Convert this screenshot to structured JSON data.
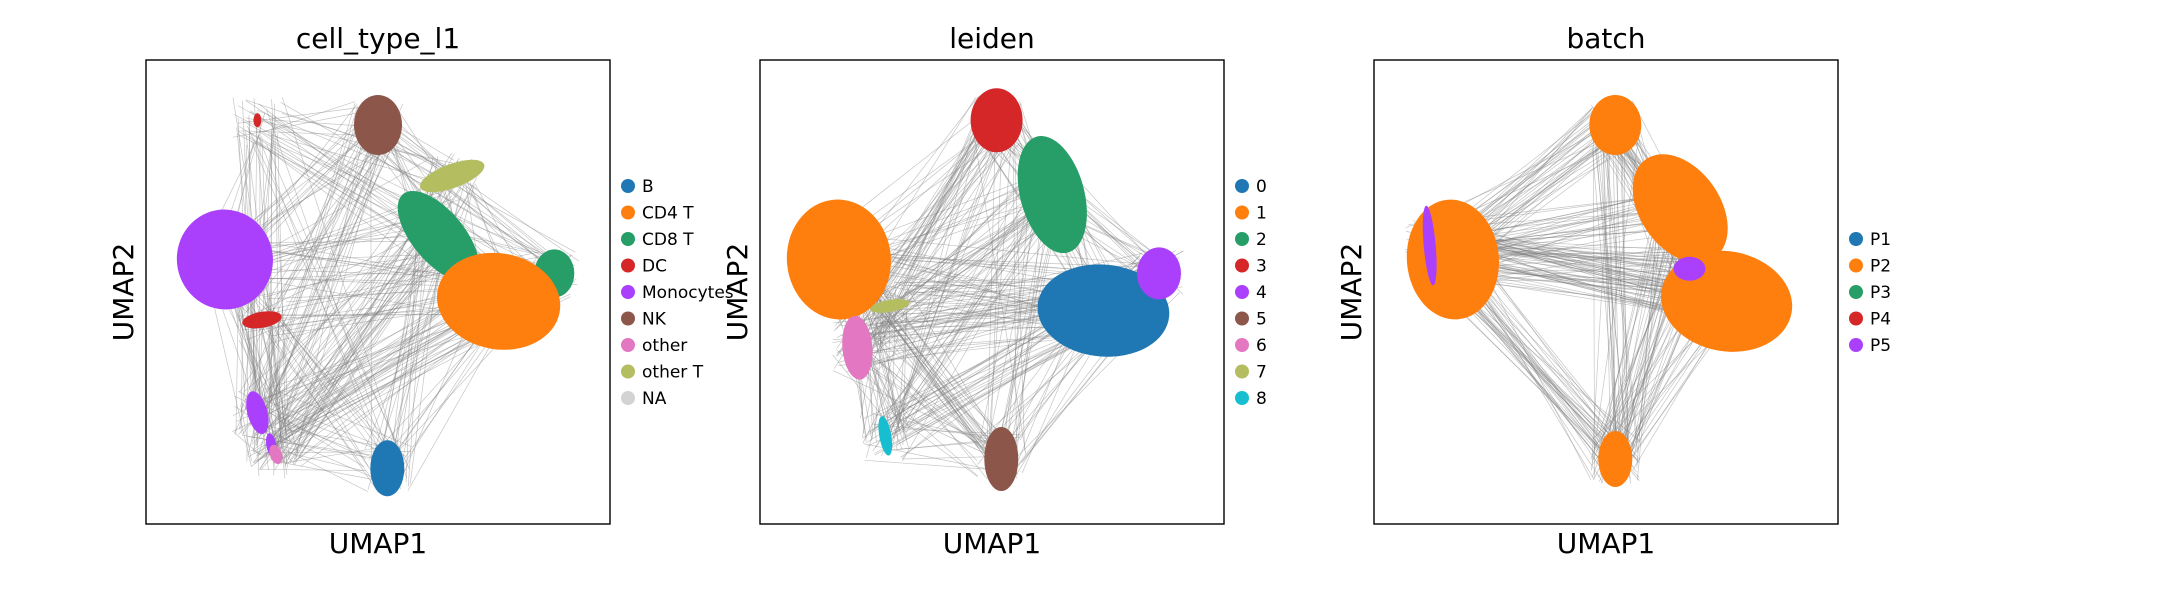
{
  "chart_data": [
    {
      "type": "scatter",
      "title": "cell_type_l1",
      "xlabel": "UMAP1",
      "ylabel": "UMAP2",
      "grid": false,
      "legend_placement": "right",
      "legend": [
        {
          "label": "B",
          "color": "#1f77b4"
        },
        {
          "label": "CD4 T",
          "color": "#ff7f0e"
        },
        {
          "label": "CD8 T",
          "color": "#279e68"
        },
        {
          "label": "DC",
          "color": "#d62728"
        },
        {
          "label": "Monocytes",
          "color": "#aa40fc"
        },
        {
          "label": "NK",
          "color": "#8c564b"
        },
        {
          "label": "other",
          "color": "#e377c2"
        },
        {
          "label": "other T",
          "color": "#b5bd61"
        },
        {
          "label": "NA",
          "color": "#d3d3d3"
        }
      ],
      "clusters": [
        {
          "category": "Monocytes",
          "x": 0.17,
          "y": 0.57
        },
        {
          "category": "Monocytes",
          "x": 0.24,
          "y": 0.24
        },
        {
          "category": "Monocytes",
          "x": 0.27,
          "y": 0.17
        },
        {
          "category": "other",
          "x": 0.28,
          "y": 0.15
        },
        {
          "category": "DC",
          "x": 0.25,
          "y": 0.44
        },
        {
          "category": "DC",
          "x": 0.24,
          "y": 0.87
        },
        {
          "category": "NK",
          "x": 0.5,
          "y": 0.86
        },
        {
          "category": "other T",
          "x": 0.66,
          "y": 0.75
        },
        {
          "category": "CD8 T",
          "x": 0.63,
          "y": 0.62
        },
        {
          "category": "CD8 T",
          "x": 0.88,
          "y": 0.54
        },
        {
          "category": "CD4 T",
          "x": 0.76,
          "y": 0.48
        },
        {
          "category": "B",
          "x": 0.52,
          "y": 0.12
        }
      ]
    },
    {
      "type": "scatter",
      "title": "leiden",
      "xlabel": "UMAP1",
      "ylabel": "UMAP2",
      "grid": false,
      "legend_placement": "right",
      "legend": [
        {
          "label": "0",
          "color": "#1f77b4"
        },
        {
          "label": "1",
          "color": "#ff7f0e"
        },
        {
          "label": "2",
          "color": "#279e68"
        },
        {
          "label": "3",
          "color": "#d62728"
        },
        {
          "label": "4",
          "color": "#aa40fc"
        },
        {
          "label": "5",
          "color": "#8c564b"
        },
        {
          "label": "6",
          "color": "#e377c2"
        },
        {
          "label": "7",
          "color": "#b5bd61"
        },
        {
          "label": "8",
          "color": "#17becf"
        }
      ],
      "clusters": [
        {
          "category": "1",
          "x": 0.17,
          "y": 0.57
        },
        {
          "category": "6",
          "x": 0.21,
          "y": 0.38
        },
        {
          "category": "8",
          "x": 0.27,
          "y": 0.19
        },
        {
          "category": "7",
          "x": 0.28,
          "y": 0.47
        },
        {
          "category": "3",
          "x": 0.51,
          "y": 0.87
        },
        {
          "category": "2",
          "x": 0.63,
          "y": 0.71
        },
        {
          "category": "0",
          "x": 0.74,
          "y": 0.46
        },
        {
          "category": "4",
          "x": 0.86,
          "y": 0.54
        },
        {
          "category": "5",
          "x": 0.52,
          "y": 0.14
        }
      ]
    },
    {
      "type": "scatter",
      "title": "batch",
      "xlabel": "UMAP1",
      "ylabel": "UMAP2",
      "grid": false,
      "legend_placement": "right",
      "legend": [
        {
          "label": "P1",
          "color": "#1f77b4"
        },
        {
          "label": "P2",
          "color": "#ff7f0e"
        },
        {
          "label": "P3",
          "color": "#279e68"
        },
        {
          "label": "P4",
          "color": "#d62728"
        },
        {
          "label": "P5",
          "color": "#aa40fc"
        }
      ],
      "clusters": [
        {
          "category": "P2",
          "x": 0.17,
          "y": 0.57
        },
        {
          "category": "P5",
          "x": 0.12,
          "y": 0.6
        },
        {
          "category": "P2",
          "x": 0.52,
          "y": 0.86
        },
        {
          "category": "P2",
          "x": 0.66,
          "y": 0.68
        },
        {
          "category": "P2",
          "x": 0.76,
          "y": 0.48
        },
        {
          "category": "P5",
          "x": 0.68,
          "y": 0.55
        },
        {
          "category": "P2",
          "x": 0.52,
          "y": 0.14
        }
      ]
    }
  ]
}
